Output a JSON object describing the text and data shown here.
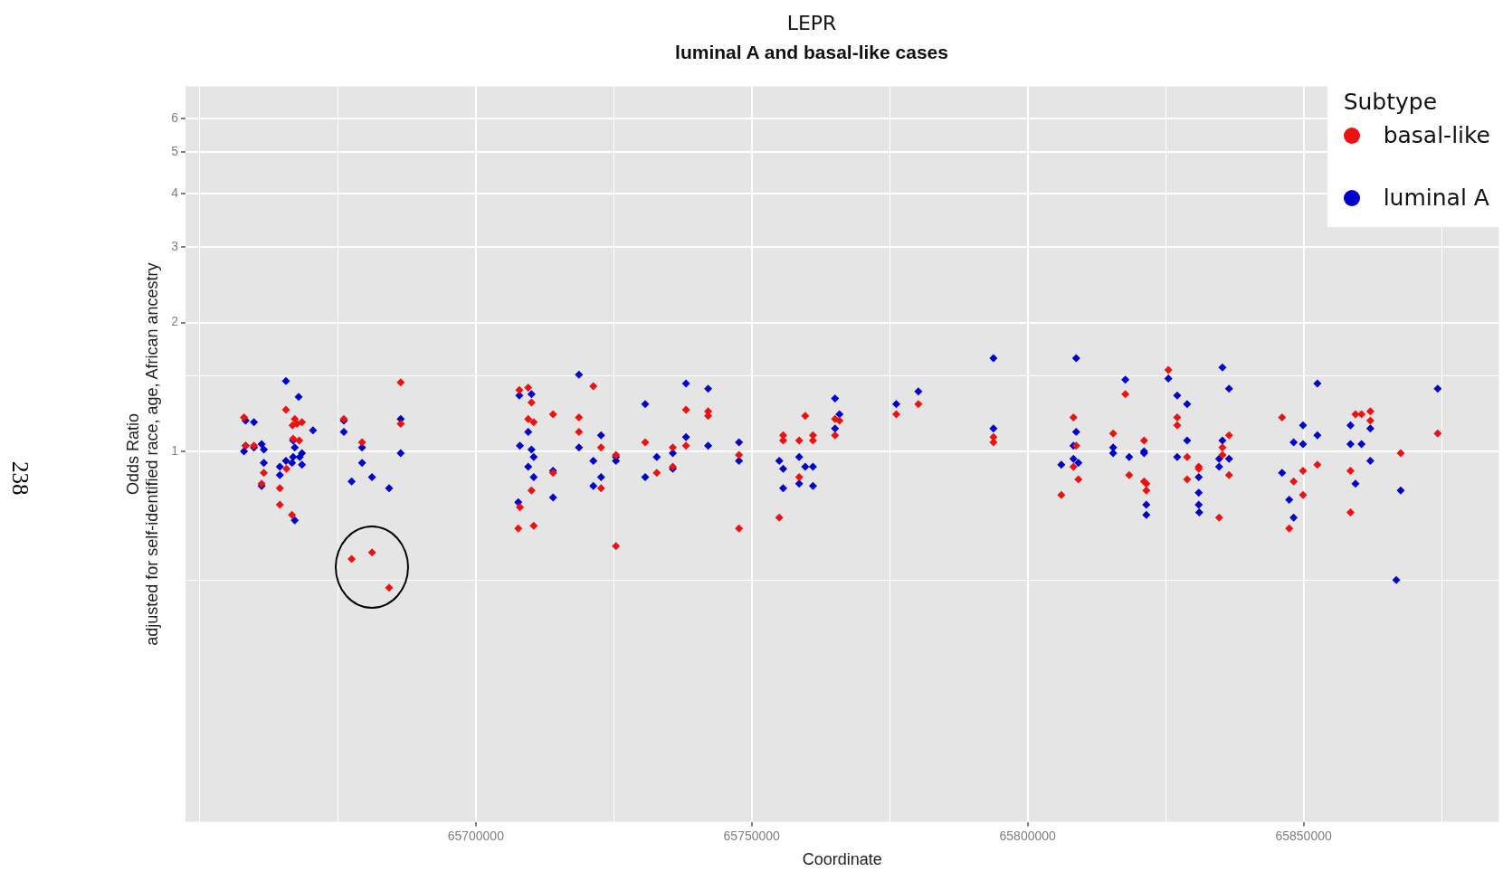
{
  "chart_data": {
    "type": "scatter",
    "title": "LEPR",
    "subtitle": "luminal A and basal-like cases",
    "xlabel": "Coordinate",
    "ylabel": "Odds Ratio\nadjusted for self-identified race, age, African ancestry",
    "legend_title": "Subtype",
    "annotations": [
      "238"
    ],
    "log": "y",
    "grid": true,
    "legend": "top right",
    "marker": "diamond",
    "xlim": [
      65647400,
      65885400
    ],
    "xticks": [
      {
        "value": 65650000,
        "label": null
      },
      {
        "value": 65675000,
        "label": null
      },
      65700000,
      {
        "value": 65725000,
        "label": null
      },
      65750000,
      {
        "value": 65775000,
        "label": null
      },
      65800000,
      {
        "value": 65825000,
        "label": null
      },
      65850000,
      {
        "value": 65875000,
        "label": null
      }
    ],
    "ylim": [
      0.136,
      7.13
    ],
    "yticks": [
      {
        "value": 0.5,
        "label": null
      },
      1,
      {
        "value": 1.5,
        "label": null
      },
      2,
      3,
      4,
      5,
      6
    ],
    "series": [
      {
        "name": "basal-like",
        "color": "#ee1111",
        "x": [
          65665600,
          65658000,
          65667200,
          65666800,
          65667600,
          65668500,
          65666900,
          65668000,
          65658300,
          65659800,
          65665700,
          65661600,
          65661200,
          65664500,
          65664500,
          65666700,
          65676100,
          65679400,
          65686400,
          65686400,
          65677500,
          65681200,
          65684300,
          65707900,
          65709500,
          65710100,
          65709500,
          65710500,
          65714000,
          65721300,
          65718700,
          65718700,
          65710100,
          65714000,
          65708000,
          65707700,
          65710500,
          65722700,
          65722700,
          65725400,
          65725400,
          65730700,
          65732800,
          65735700,
          65735700,
          65738100,
          65738100,
          65742100,
          65742100,
          65747700,
          65747700,
          65755000,
          65755700,
          65755700,
          65758600,
          65758600,
          65759700,
          65761100,
          65761100,
          65765100,
          65765900,
          65765100,
          65776200,
          65780200,
          65793800,
          65793800,
          65808300,
          65808800,
          65808300,
          65809200,
          65806100,
          65817700,
          65815500,
          65818400,
          65821100,
          65821100,
          65821500,
          65821500,
          65825500,
          65827100,
          65827100,
          65828900,
          65828900,
          65831000,
          65831000,
          65836500,
          65835300,
          65835300,
          65836500,
          65834700,
          65846100,
          65852500,
          65849900,
          65848200,
          65849900,
          65847400,
          65859400,
          65860500,
          65862100,
          65862100,
          65858500,
          65858500,
          65867600,
          65874300
        ],
        "values": [
          1.25,
          1.2,
          1.19,
          1.15,
          1.16,
          1.17,
          1.07,
          1.06,
          1.03,
          1.03,
          0.91,
          0.89,
          0.84,
          0.82,
          0.75,
          0.71,
          1.19,
          1.05,
          1.45,
          1.16,
          0.56,
          0.58,
          0.48,
          1.39,
          1.41,
          1.3,
          1.19,
          1.17,
          1.22,
          1.42,
          1.2,
          1.11,
          0.81,
          0.89,
          0.74,
          0.66,
          0.67,
          1.02,
          0.82,
          0.98,
          0.6,
          1.05,
          0.89,
          1.02,
          0.92,
          1.25,
          1.03,
          1.24,
          1.21,
          0.98,
          0.66,
          0.7,
          1.09,
          1.06,
          1.06,
          0.87,
          1.21,
          1.09,
          1.06,
          1.19,
          1.18,
          1.09,
          1.22,
          1.29,
          1.08,
          1.05,
          1.2,
          1.03,
          0.92,
          0.86,
          0.79,
          1.36,
          1.1,
          0.88,
          1.06,
          0.85,
          0.84,
          0.81,
          1.55,
          1.2,
          1.15,
          0.97,
          0.86,
          0.92,
          0.91,
          1.09,
          1.02,
          0.98,
          0.88,
          0.7,
          1.2,
          0.93,
          0.9,
          0.85,
          0.79,
          0.66,
          1.22,
          1.22,
          1.24,
          1.18,
          0.9,
          0.72,
          0.99,
          1.1
        ]
      },
      {
        "name": "luminal A",
        "color": "#0000cc",
        "x": [
          65665600,
          65667900,
          65658300,
          65659800,
          65670500,
          65666900,
          65667200,
          65658300,
          65659800,
          65661200,
          65661600,
          65658000,
          65668500,
          65668100,
          65666900,
          65665600,
          65666700,
          65668500,
          65664500,
          65661600,
          65664500,
          65661200,
          65667200,
          65676100,
          65676100,
          65679400,
          65679400,
          65677500,
          65681200,
          65684300,
          65686400,
          65686400,
          65707900,
          65710100,
          65718700,
          65722700,
          65709500,
          65708000,
          65710100,
          65710500,
          65709500,
          65710500,
          65714000,
          65714000,
          65707700,
          65718700,
          65721300,
          65722700,
          65721300,
          65725400,
          65725400,
          65730700,
          65730700,
          65732800,
          65735700,
          65735700,
          65738100,
          65738100,
          65742100,
          65742100,
          65747700,
          65747700,
          65755000,
          65755700,
          65755700,
          65758600,
          65758600,
          65759700,
          65761100,
          65761100,
          65765100,
          65765900,
          65765100,
          65776200,
          65780200,
          65793800,
          65793800,
          65808800,
          65808800,
          65808300,
          65808300,
          65809200,
          65806100,
          65817700,
          65815500,
          65815500,
          65818400,
          65821100,
          65821100,
          65821500,
          65821500,
          65825500,
          65827100,
          65828900,
          65828900,
          65827100,
          65831000,
          65831000,
          65831000,
          65831100,
          65835300,
          65836500,
          65835300,
          65834700,
          65836500,
          65834700,
          65852500,
          65849900,
          65852500,
          65848200,
          65849900,
          65846100,
          65847400,
          65848200,
          65858500,
          65862100,
          65858500,
          65860500,
          65862100,
          65859400,
          65867600,
          65866800,
          65874300
        ],
        "values": [
          1.46,
          1.34,
          1.18,
          1.17,
          1.12,
          1.06,
          1.02,
          1.03,
          1.02,
          1.04,
          1.01,
          1.0,
          0.99,
          0.97,
          0.97,
          0.95,
          0.94,
          0.93,
          0.92,
          0.94,
          0.88,
          0.83,
          0.69,
          1.18,
          1.11,
          1.02,
          0.94,
          0.85,
          0.87,
          0.82,
          1.19,
          0.99,
          1.35,
          1.36,
          1.51,
          1.09,
          1.11,
          1.03,
          1.01,
          0.97,
          0.92,
          0.87,
          0.9,
          0.78,
          0.76,
          1.02,
          0.95,
          0.87,
          0.83,
          0.97,
          0.95,
          1.29,
          0.87,
          0.97,
          0.99,
          0.91,
          1.44,
          1.08,
          1.4,
          1.03,
          1.05,
          0.95,
          0.95,
          0.91,
          0.82,
          0.97,
          0.84,
          0.92,
          0.92,
          0.83,
          1.33,
          1.22,
          1.13,
          1.29,
          1.38,
          1.65,
          1.13,
          1.65,
          1.11,
          1.03,
          0.96,
          0.94,
          0.93,
          1.47,
          1.02,
          0.99,
          0.97,
          1.0,
          0.99,
          0.75,
          0.71,
          1.48,
          1.35,
          1.29,
          1.06,
          0.97,
          0.87,
          0.8,
          0.75,
          0.72,
          1.57,
          1.4,
          1.06,
          0.96,
          0.96,
          0.92,
          1.44,
          1.15,
          1.09,
          1.05,
          1.04,
          0.89,
          0.77,
          0.7,
          1.15,
          1.13,
          1.04,
          1.04,
          0.95,
          0.84,
          0.81,
          0.5,
          1.4
        ]
      }
    ]
  }
}
